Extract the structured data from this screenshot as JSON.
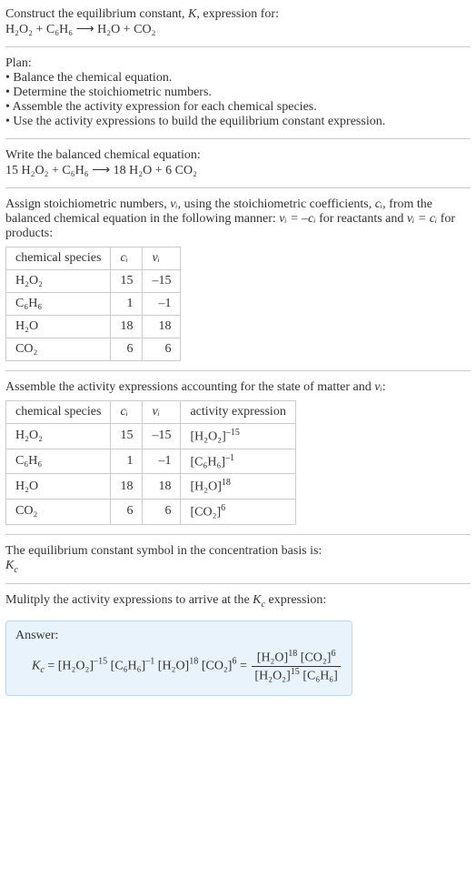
{
  "header": {
    "title_prefix": "Construct the equilibrium constant, ",
    "title_K": "K",
    "title_suffix": ", expression for:",
    "equation": "H₂O₂ + C₆H₆ ⟶ H₂O + CO₂"
  },
  "plan": {
    "title": "Plan:",
    "items": [
      "• Balance the chemical equation.",
      "• Determine the stoichiometric numbers.",
      "• Assemble the activity expression for each chemical species.",
      "• Use the activity expressions to build the equilibrium constant expression."
    ]
  },
  "balanced": {
    "title": "Write the balanced chemical equation:",
    "equation": "15 H₂O₂ + C₆H₆ ⟶ 18 H₂O + 6 CO₂"
  },
  "assign": {
    "text_parts": {
      "p1": "Assign stoichiometric numbers, ",
      "nu_i": "νᵢ",
      "p2": ", using the stoichiometric coefficients, ",
      "c_i": "cᵢ",
      "p3": ", from the balanced chemical equation in the following manner: ",
      "rel1": "νᵢ = –cᵢ",
      "p4": " for reactants and ",
      "rel2": "νᵢ = cᵢ",
      "p5": " for products:"
    }
  },
  "table1": {
    "headers": {
      "species": "chemical species",
      "ci": "cᵢ",
      "vi": "νᵢ"
    },
    "rows": [
      {
        "sp": "H₂O₂",
        "ci": "15",
        "vi": "–15"
      },
      {
        "sp": "C₆H₆",
        "ci": "1",
        "vi": "–1"
      },
      {
        "sp": "H₂O",
        "ci": "18",
        "vi": "18"
      },
      {
        "sp": "CO₂",
        "ci": "6",
        "vi": "6"
      }
    ]
  },
  "assemble": {
    "prefix": "Assemble the activity expressions accounting for the state of matter and ",
    "nu_i": "νᵢ",
    "suffix": ":"
  },
  "table2": {
    "headers": {
      "species": "chemical species",
      "ci": "cᵢ",
      "vi": "νᵢ",
      "act": "activity expression"
    },
    "rows": [
      {
        "sp": "H₂O₂",
        "ci": "15",
        "vi": "–15",
        "base": "[H₂O₂]",
        "exp": "–15"
      },
      {
        "sp": "C₆H₆",
        "ci": "1",
        "vi": "–1",
        "base": "[C₆H₆]",
        "exp": "–1"
      },
      {
        "sp": "H₂O",
        "ci": "18",
        "vi": "18",
        "base": "[H₂O]",
        "exp": "18"
      },
      {
        "sp": "CO₂",
        "ci": "6",
        "vi": "6",
        "base": "[CO₂]",
        "exp": "6"
      }
    ]
  },
  "symbol": {
    "text": "The equilibrium constant symbol in the concentration basis is:",
    "Kc": "K",
    "Kc_sub": "c"
  },
  "multiply": {
    "prefix": "Mulitply the activity expressions to arrive at the ",
    "Kc": "K",
    "Kc_sub": "c",
    "suffix": " expression:"
  },
  "answer": {
    "label": "Answer:",
    "Kc": "K",
    "Kc_sub": "c",
    "eq": " = ",
    "t1_base": "[H₂O₂]",
    "t1_exp": "–15",
    "t2_base": "[C₆H₆]",
    "t2_exp": "–1",
    "t3_base": "[H₂O]",
    "t3_exp": "18",
    "t4_base": "[CO₂]",
    "t4_exp": "6",
    "eq2": " = ",
    "num1_base": "[H₂O]",
    "num1_exp": "18",
    "num2_base": "[CO₂]",
    "num2_exp": "6",
    "den1_base": "[H₂O₂]",
    "den1_exp": "15",
    "den2_base": "[C₆H₆]",
    "den2_exp": ""
  }
}
